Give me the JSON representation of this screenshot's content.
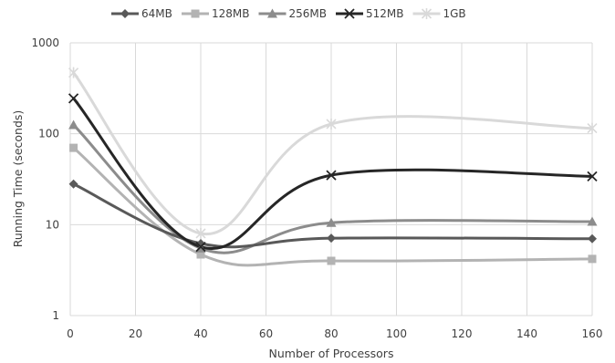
{
  "chart_data": {
    "type": "line",
    "title": "",
    "xlabel": "Number of Processors",
    "ylabel": "Running Time (seconds)",
    "x": [
      1,
      40,
      80,
      160
    ],
    "xlim": [
      0,
      160
    ],
    "xticks": [
      0,
      20,
      40,
      60,
      80,
      100,
      120,
      140,
      160
    ],
    "xtick_labels": [
      "0",
      "20",
      "40",
      "60",
      "80",
      "100",
      "120",
      "140",
      "160"
    ],
    "yscale": "log",
    "ylim": [
      1,
      1000
    ],
    "yticks": [
      1,
      10,
      100,
      1000
    ],
    "ytick_labels": [
      "1",
      "10",
      "100",
      "1000"
    ],
    "grid": true,
    "smooth": true,
    "legend_position": "top",
    "series": [
      {
        "name": "64MB",
        "values": [
          28,
          6.2,
          7.1,
          7.0
        ],
        "color": "#595959",
        "marker": "diamond"
      },
      {
        "name": "128MB",
        "values": [
          70,
          4.7,
          4.0,
          4.2
        ],
        "color": "#b3b3b3",
        "marker": "square"
      },
      {
        "name": "256MB",
        "values": [
          125,
          5.5,
          10.5,
          10.8
        ],
        "color": "#8c8c8c",
        "marker": "triangle"
      },
      {
        "name": "512MB",
        "values": [
          245,
          5.7,
          35,
          34
        ],
        "color": "#262626",
        "marker": "x"
      },
      {
        "name": "1GB",
        "values": [
          470,
          8.0,
          128,
          115
        ],
        "color": "#d9d9d9",
        "marker": "star"
      }
    ]
  }
}
